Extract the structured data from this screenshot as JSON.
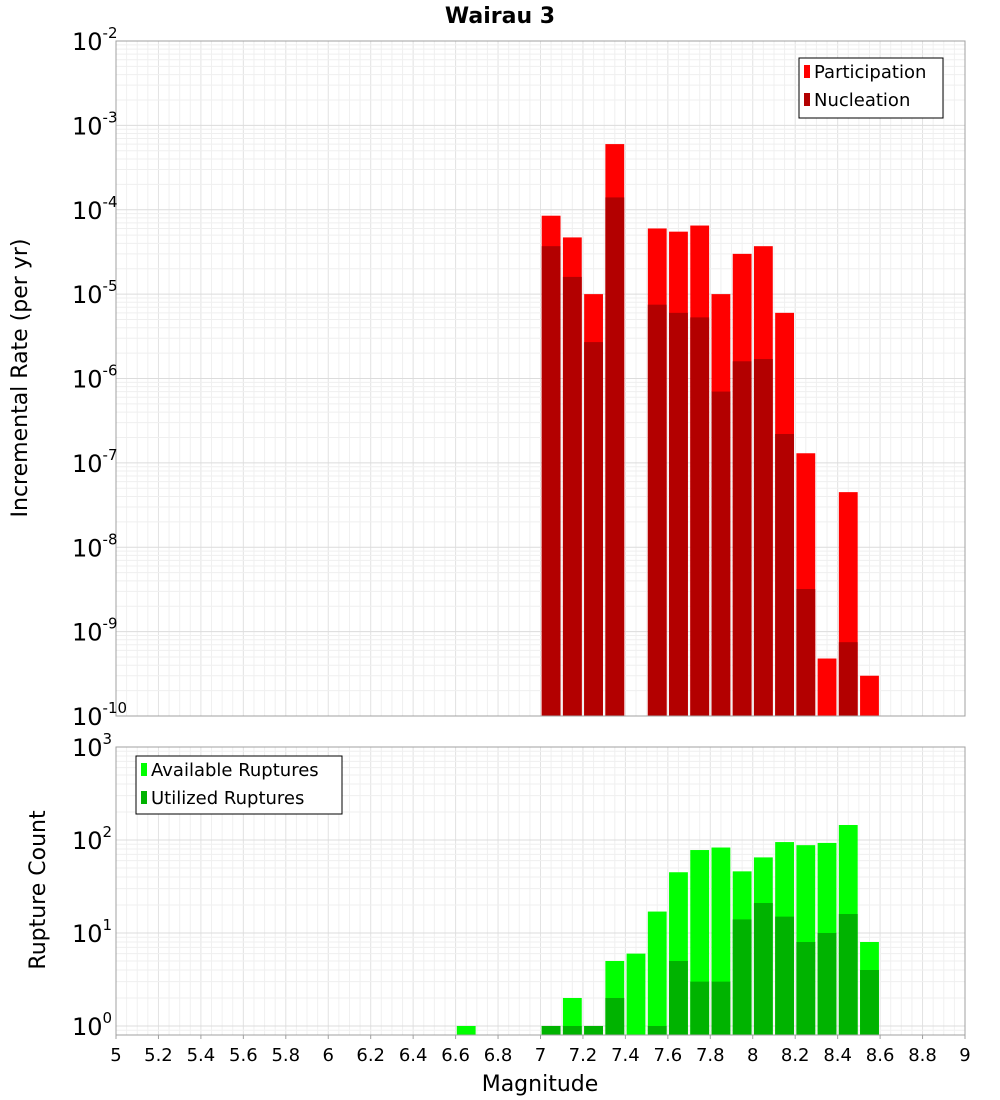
{
  "chart_data": [
    {
      "type": "bar",
      "title": "Wairau 3",
      "ylabel": "Incremental Rate (per yr)",
      "yscale": "log",
      "ylim": [
        1e-10,
        0.01
      ],
      "ytick_labels": [
        {
          "base": "10",
          "exp": "-10"
        },
        {
          "base": "10",
          "exp": "-9"
        },
        {
          "base": "10",
          "exp": "-8"
        },
        {
          "base": "10",
          "exp": "-7"
        },
        {
          "base": "10",
          "exp": "-6"
        },
        {
          "base": "10",
          "exp": "-5"
        },
        {
          "base": "10",
          "exp": "-4"
        },
        {
          "base": "10",
          "exp": "-3"
        },
        {
          "base": "10",
          "exp": "-2"
        }
      ],
      "grid": true,
      "legend": {
        "placement": "top-right"
      },
      "x": [
        7.05,
        7.15,
        7.25,
        7.35,
        7.55,
        7.65,
        7.75,
        7.85,
        7.95,
        8.05,
        8.15,
        8.25,
        8.35,
        8.45,
        8.55
      ],
      "series": [
        {
          "name": "Participation",
          "color": "#ff0000",
          "values": [
            8.5e-05,
            4.7e-05,
            1e-05,
            0.0006,
            6e-05,
            5.5e-05,
            6.5e-05,
            1e-05,
            3e-05,
            3.7e-05,
            6e-06,
            1.3e-07,
            4.8e-10,
            4.5e-08,
            3e-10
          ]
        },
        {
          "name": "Nucleation",
          "color": "#b30000",
          "values": [
            3.7e-05,
            1.6e-05,
            2.7e-06,
            0.00014,
            7.5e-06,
            6e-06,
            5.3e-06,
            7e-07,
            1.6e-06,
            1.7e-06,
            2.2e-07,
            3.2e-09,
            null,
            7.5e-10,
            null
          ]
        }
      ]
    },
    {
      "type": "bar",
      "xlabel": "Magnitude",
      "ylabel": "Rupture Count",
      "yscale": "log",
      "ylim": [
        0.8,
        1000
      ],
      "ytick_labels": [
        {
          "base": "10",
          "exp": "0"
        },
        {
          "base": "10",
          "exp": "1"
        },
        {
          "base": "10",
          "exp": "2"
        },
        {
          "base": "10",
          "exp": "3"
        }
      ],
      "xlim": [
        5,
        9
      ],
      "xtick_labels": [
        "5",
        "5.2",
        "5.4",
        "5.6",
        "5.8",
        "6",
        "6.2",
        "6.4",
        "6.6",
        "6.8",
        "7",
        "7.2",
        "7.4",
        "7.6",
        "7.8",
        "8",
        "8.2",
        "8.4",
        "8.6",
        "8.8",
        "9"
      ],
      "grid": true,
      "legend": {
        "placement": "top-left"
      },
      "x": [
        6.65,
        7.05,
        7.15,
        7.25,
        7.35,
        7.45,
        7.55,
        7.65,
        7.75,
        7.85,
        7.95,
        8.05,
        8.15,
        8.25,
        8.35,
        8.45,
        8.55
      ],
      "series": [
        {
          "name": "Available Ruptures",
          "color": "#00ff00",
          "values": [
            1,
            1,
            2,
            1,
            5,
            6,
            17,
            45,
            78,
            83,
            46,
            65,
            95,
            88,
            93,
            145,
            8
          ]
        },
        {
          "name": "Utilized Ruptures",
          "color": "#00b300",
          "values": [
            null,
            1,
            1,
            1,
            2,
            null,
            1,
            5,
            3,
            3,
            14,
            21,
            15,
            8,
            10,
            16,
            4
          ]
        }
      ]
    }
  ]
}
